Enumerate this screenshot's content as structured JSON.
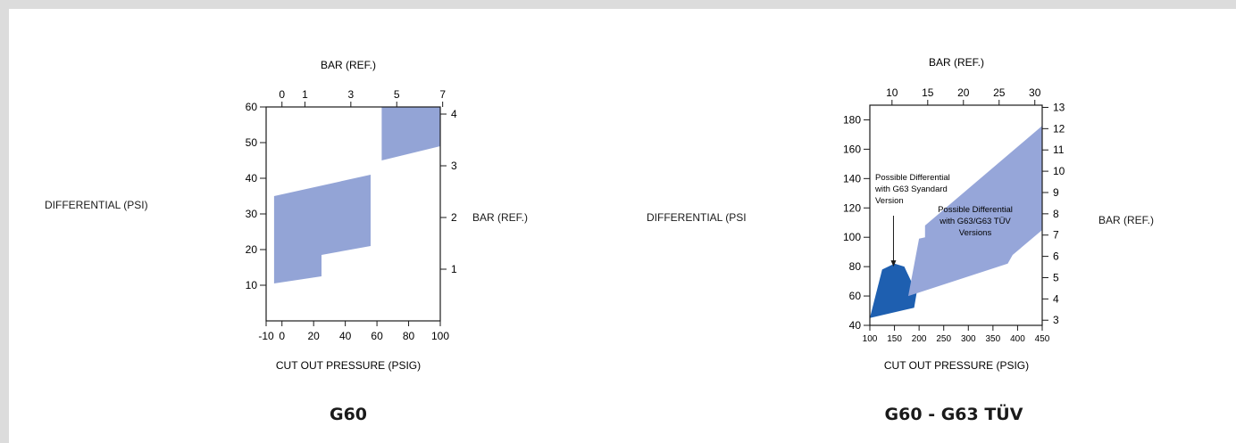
{
  "charts": [
    {
      "caption": "G60",
      "chart_data": {
        "type": "area",
        "title": "G60",
        "xlabel": "CUT OUT PRESSURE (PSIG)",
        "ylabel": "DIFFERENTIAL (PSI)",
        "x2label": "BAR (REF.)",
        "y2label": "BAR (REF.)",
        "xlim": [
          -10,
          100
        ],
        "ylim": [
          0,
          60
        ],
        "x_ticks": [
          -10,
          0,
          20,
          40,
          60,
          80,
          100
        ],
        "y_ticks": [
          10,
          20,
          30,
          40,
          50,
          60
        ],
        "x2_ticks": [
          {
            "label": "0",
            "psig": 0
          },
          {
            "label": "1",
            "psig": 14.5
          },
          {
            "label": "3",
            "psig": 43.5
          },
          {
            "label": "5",
            "psig": 72.5
          },
          {
            "label": "7",
            "psig": 101.5
          }
        ],
        "y2_ticks": [
          {
            "label": "1",
            "psi": 14.5
          },
          {
            "label": "2",
            "psi": 29
          },
          {
            "label": "3",
            "psi": 43.5
          },
          {
            "label": "4",
            "psi": 58
          }
        ],
        "regions": [
          {
            "color": "#93a4d6",
            "points": [
              [
                -5,
                10.5
              ],
              [
                -5,
                35
              ],
              [
                56,
                41
              ],
              [
                56,
                21
              ],
              [
                25,
                18.5
              ],
              [
                25,
                12.5
              ]
            ]
          },
          {
            "color": "#93a4d6",
            "points": [
              [
                63,
                45
              ],
              [
                63,
                60
              ],
              [
                100,
                60
              ],
              [
                100,
                49
              ]
            ]
          }
        ]
      }
    },
    {
      "caption": "G60 - G63 TÜV",
      "chart_data": {
        "type": "area",
        "title": "G60 - G63 TÜV",
        "xlabel": "CUT OUT PRESSURE (PSIG)",
        "ylabel": "DIFFERENTIAL (PSI",
        "x2label": "BAR (REF.)",
        "y2label": "BAR (REF.)",
        "xlim": [
          100,
          450
        ],
        "ylim": [
          40,
          190
        ],
        "x_ticks": [
          100,
          150,
          200,
          250,
          300,
          350,
          400,
          450
        ],
        "y_ticks": [
          40,
          60,
          80,
          100,
          120,
          140,
          160,
          180
        ],
        "x2_ticks": [
          {
            "label": "10",
            "psig": 145
          },
          {
            "label": "15",
            "psig": 217.5
          },
          {
            "label": "20",
            "psig": 290
          },
          {
            "label": "25",
            "psig": 362.5
          },
          {
            "label": "30",
            "psig": 435
          }
        ],
        "y2_ticks": [
          {
            "label": "3",
            "psi": 43.5
          },
          {
            "label": "4",
            "psi": 58
          },
          {
            "label": "5",
            "psi": 72.5
          },
          {
            "label": "6",
            "psi": 87
          },
          {
            "label": "7",
            "psi": 101.5
          },
          {
            "label": "8",
            "psi": 116
          },
          {
            "label": "9",
            "psi": 130.5
          },
          {
            "label": "10",
            "psi": 145
          },
          {
            "label": "11",
            "psi": 159.5
          },
          {
            "label": "12",
            "psi": 174
          },
          {
            "label": "13",
            "psi": 188.5
          }
        ],
        "regions": [
          {
            "name": "Possible Differential with G63 Syandard Version",
            "color": "#1e5fb0",
            "points": [
              [
                100,
                45
              ],
              [
                125,
                78
              ],
              [
                150,
                82
              ],
              [
                170,
                80
              ],
              [
                195,
                62
              ],
              [
                190,
                52
              ]
            ]
          },
          {
            "name": "Possible Differential with G63/G63 TÜV Versions",
            "color": "#96a6d9",
            "points": [
              [
                178,
                60
              ],
              [
                200,
                99
              ],
              [
                212,
                100
              ],
              [
                212,
                108
              ],
              [
                450,
                176
              ],
              [
                450,
                105
              ],
              [
                390,
                88
              ],
              [
                380,
                82
              ]
            ]
          }
        ],
        "annotations": [
          {
            "lines": [
              "Possible Differential",
              "with G63 Syandard",
              "Version"
            ],
            "arrow_to": [
              148,
              80
            ]
          },
          {
            "lines": [
              "Possible Differential",
              "with G63/G63 TÜV",
              "Versions"
            ]
          }
        ]
      }
    }
  ]
}
